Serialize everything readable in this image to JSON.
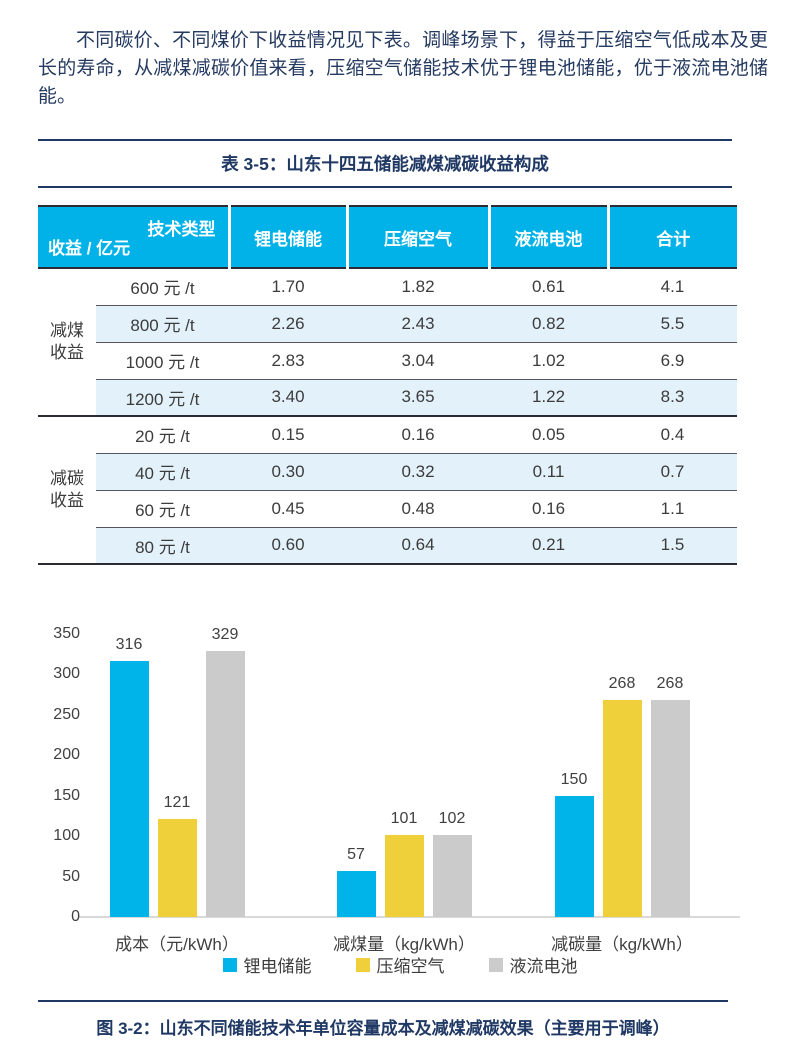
{
  "colors": {
    "navy": "#1f3864",
    "body_text": "#253a60",
    "table_header_bg": "#00b2e8",
    "row_alt_bg": "#e3f1fa",
    "bar_cyan": "#00b4ea",
    "bar_yellow": "#efcf3a",
    "bar_gray": "#cbcbcb"
  },
  "paragraph": "不同碳价、不同煤价下收益情况见下表。调峰场景下，得益于压缩空气低成本及更长的寿命，从减煤减碳价值来看，压缩空气储能技术优于锂电池储能，优于液流电池储能。",
  "table": {
    "title": "表 3-5：山东十四五储能减煤减碳收益构成",
    "corner": {
      "top": "技术类型",
      "bottom": "收益 / 亿元"
    },
    "columns": [
      "锂电储能",
      "压缩空气",
      "液流电池",
      "合计"
    ],
    "groups": [
      {
        "label": "减煤收益",
        "rows": [
          {
            "price": "600 元 /t",
            "values": [
              "1.70",
              "1.82",
              "0.61",
              "4.1"
            ]
          },
          {
            "price": "800 元 /t",
            "values": [
              "2.26",
              "2.43",
              "0.82",
              "5.5"
            ]
          },
          {
            "price": "1000 元 /t",
            "values": [
              "2.83",
              "3.04",
              "1.02",
              "6.9"
            ]
          },
          {
            "price": "1200 元 /t",
            "values": [
              "3.40",
              "3.65",
              "1.22",
              "8.3"
            ]
          }
        ]
      },
      {
        "label": "减碳收益",
        "rows": [
          {
            "price": "20 元 /t",
            "values": [
              "0.15",
              "0.16",
              "0.05",
              "0.4"
            ]
          },
          {
            "price": "40 元 /t",
            "values": [
              "0.30",
              "0.32",
              "0.11",
              "0.7"
            ]
          },
          {
            "price": "60 元 /t",
            "values": [
              "0.45",
              "0.48",
              "0.16",
              "1.1"
            ]
          },
          {
            "price": "80 元 /t",
            "values": [
              "0.60",
              "0.64",
              "0.21",
              "1.5"
            ]
          }
        ]
      }
    ]
  },
  "chart_data": {
    "type": "bar",
    "title": "",
    "categories": [
      "成本（元/kWh）",
      "减煤量（kg/kWh）",
      "减碳量（kg/kWh）"
    ],
    "series": [
      {
        "name": "锂电储能",
        "color": "#00b4ea",
        "values": [
          316,
          57,
          150
        ]
      },
      {
        "name": "压缩空气",
        "color": "#efcf3a",
        "values": [
          121,
          101,
          268
        ]
      },
      {
        "name": "液流电池",
        "color": "#cbcbcb",
        "values": [
          329,
          102,
          268
        ]
      }
    ],
    "xlabel": "",
    "ylabel": "",
    "ylim": [
      0,
      350
    ],
    "yticks": [
      350,
      300,
      250,
      200,
      150,
      100,
      50,
      0
    ],
    "grid": false,
    "data_labels": true,
    "legend_position": "bottom"
  },
  "caption": "图 3-2：山东不同储能技术年单位容量成本及减煤减碳效果（主要用于调峰）"
}
